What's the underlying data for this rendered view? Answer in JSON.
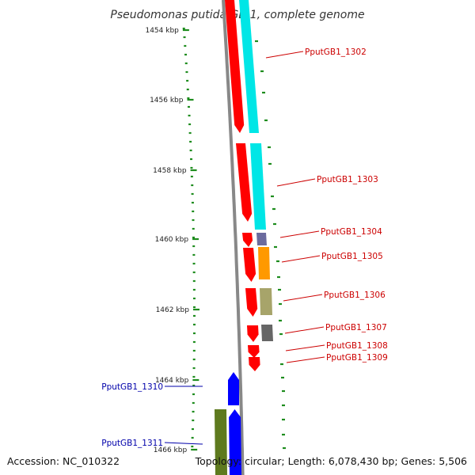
{
  "map": {
    "title": "Pseudomonas putida GB-1, complete genome",
    "accession": "Accession: NC_010322",
    "summary": "Topology: circular; Length: 6,078,430 bp; Genes: 5,506"
  },
  "axis": {
    "unit": "kbp",
    "ticks": [
      "1454 kbp",
      "1456 kbp",
      "1458 kbp",
      "1460 kbp",
      "1462 kbp",
      "1464 kbp",
      "1466 kbp"
    ]
  },
  "colors": {
    "tick": "#1e8c1e",
    "backbone": "#888888",
    "cds_forward": "#ff0000",
    "cds_reverse": "#0000ff",
    "label_forward": "#cc0000",
    "label_reverse": "#0000aa",
    "feature_cyan": "#00e6e6",
    "feature_orange": "#ff9900",
    "feature_olive": "#a7a46a",
    "feature_gray": "#666666",
    "feature_slate": "#6b6b9e",
    "feature_green": "#5e7a1e"
  },
  "genes": [
    {
      "label": "PputGB1_1302",
      "strand": "forward"
    },
    {
      "label": "PputGB1_1303",
      "strand": "forward"
    },
    {
      "label": "PputGB1_1304",
      "strand": "forward"
    },
    {
      "label": "PputGB1_1305",
      "strand": "forward"
    },
    {
      "label": "PputGB1_1306",
      "strand": "forward"
    },
    {
      "label": "PputGB1_1307",
      "strand": "forward"
    },
    {
      "label": "PputGB1_1308",
      "strand": "forward"
    },
    {
      "label": "PputGB1_1309",
      "strand": "forward"
    },
    {
      "label": "PputGB1_1310",
      "strand": "reverse"
    },
    {
      "label": "PputGB1_1311",
      "strand": "reverse"
    }
  ]
}
